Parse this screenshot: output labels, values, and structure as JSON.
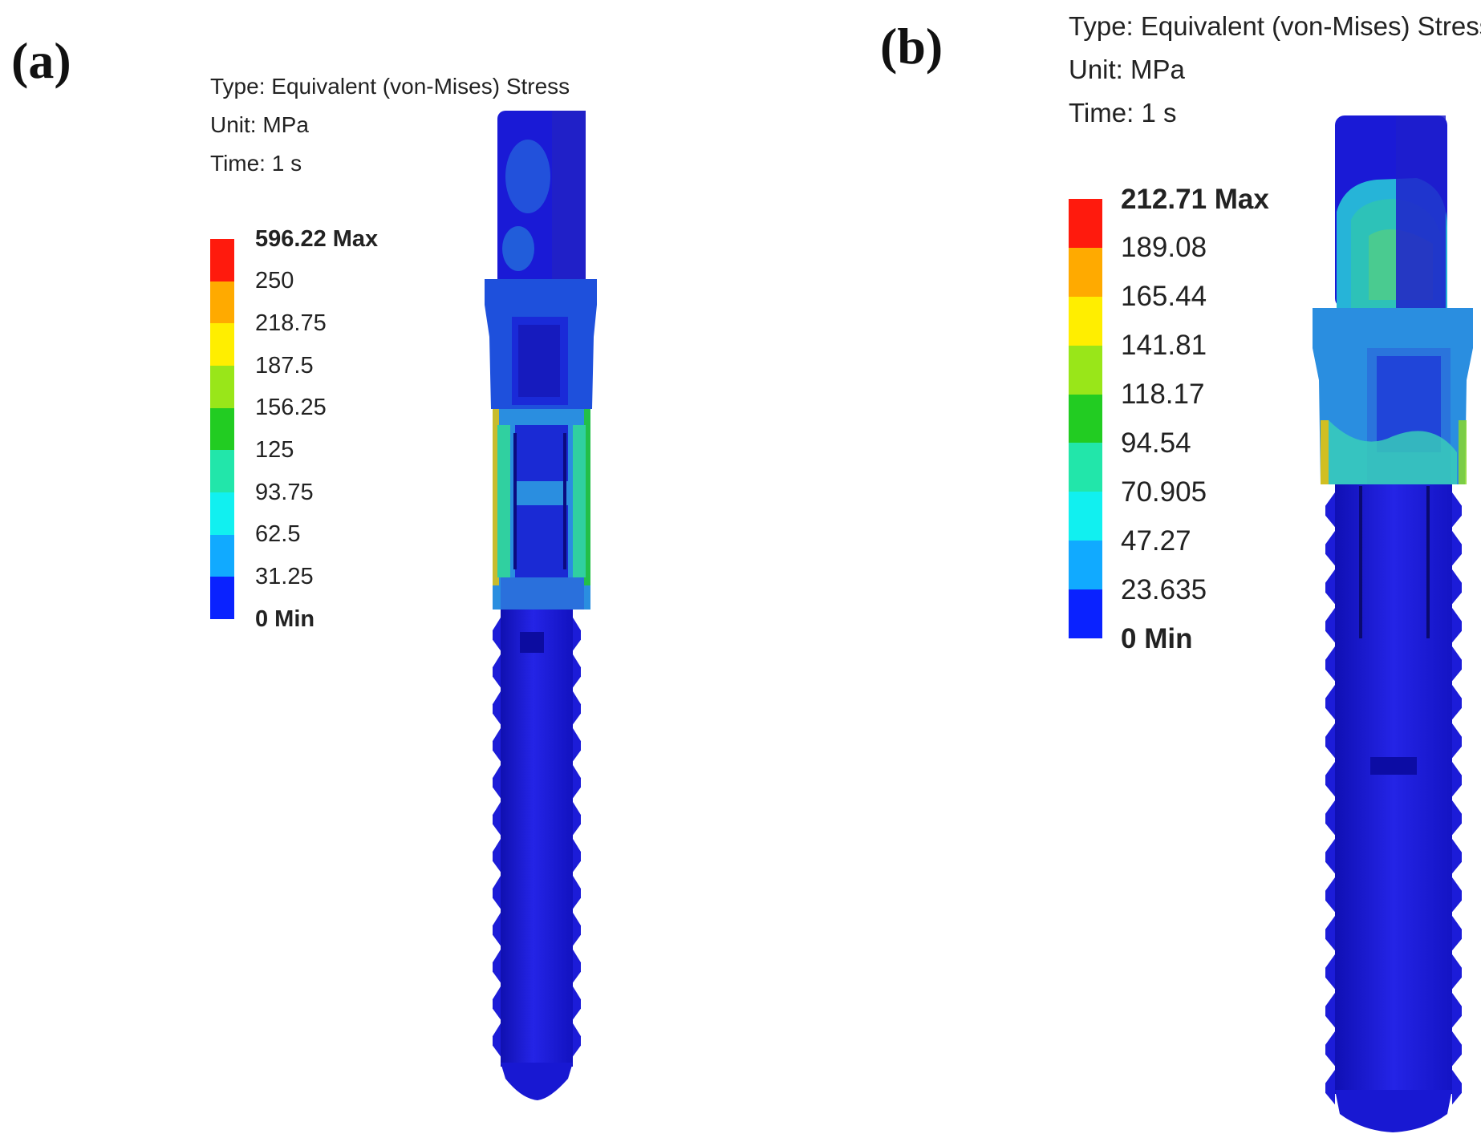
{
  "panels": [
    {
      "label": "(a)",
      "type_line": "Type: Equivalent (von-Mises) Stress",
      "unit_line": "Unit: MPa",
      "time_line": "Time: 1 s",
      "legend": [
        "596.22 Max",
        "250",
        "218.75",
        "187.5",
        "156.25",
        "125",
        "93.75",
        "62.5",
        "31.25",
        "0 Min"
      ]
    },
    {
      "label": "(b)",
      "type_line": "Type: Equivalent (von-Mises) Stress",
      "unit_line": "Unit: MPa",
      "time_line": "Time: 1 s",
      "legend": [
        "212.71 Max",
        "189.08",
        "165.44",
        "141.81",
        "118.17",
        "94.54",
        "70.905",
        "47.27",
        "23.635",
        "0 Min"
      ]
    }
  ],
  "colors": {
    "scale": [
      "#ff1a0d",
      "#ffaa00",
      "#ffee00",
      "#99e619",
      "#22cc22",
      "#22e6aa",
      "#11f0f0",
      "#11aaff",
      "#0a22ff"
    ],
    "implant_base": "#1a1adc",
    "implant_dark": "#0a0a9a"
  }
}
